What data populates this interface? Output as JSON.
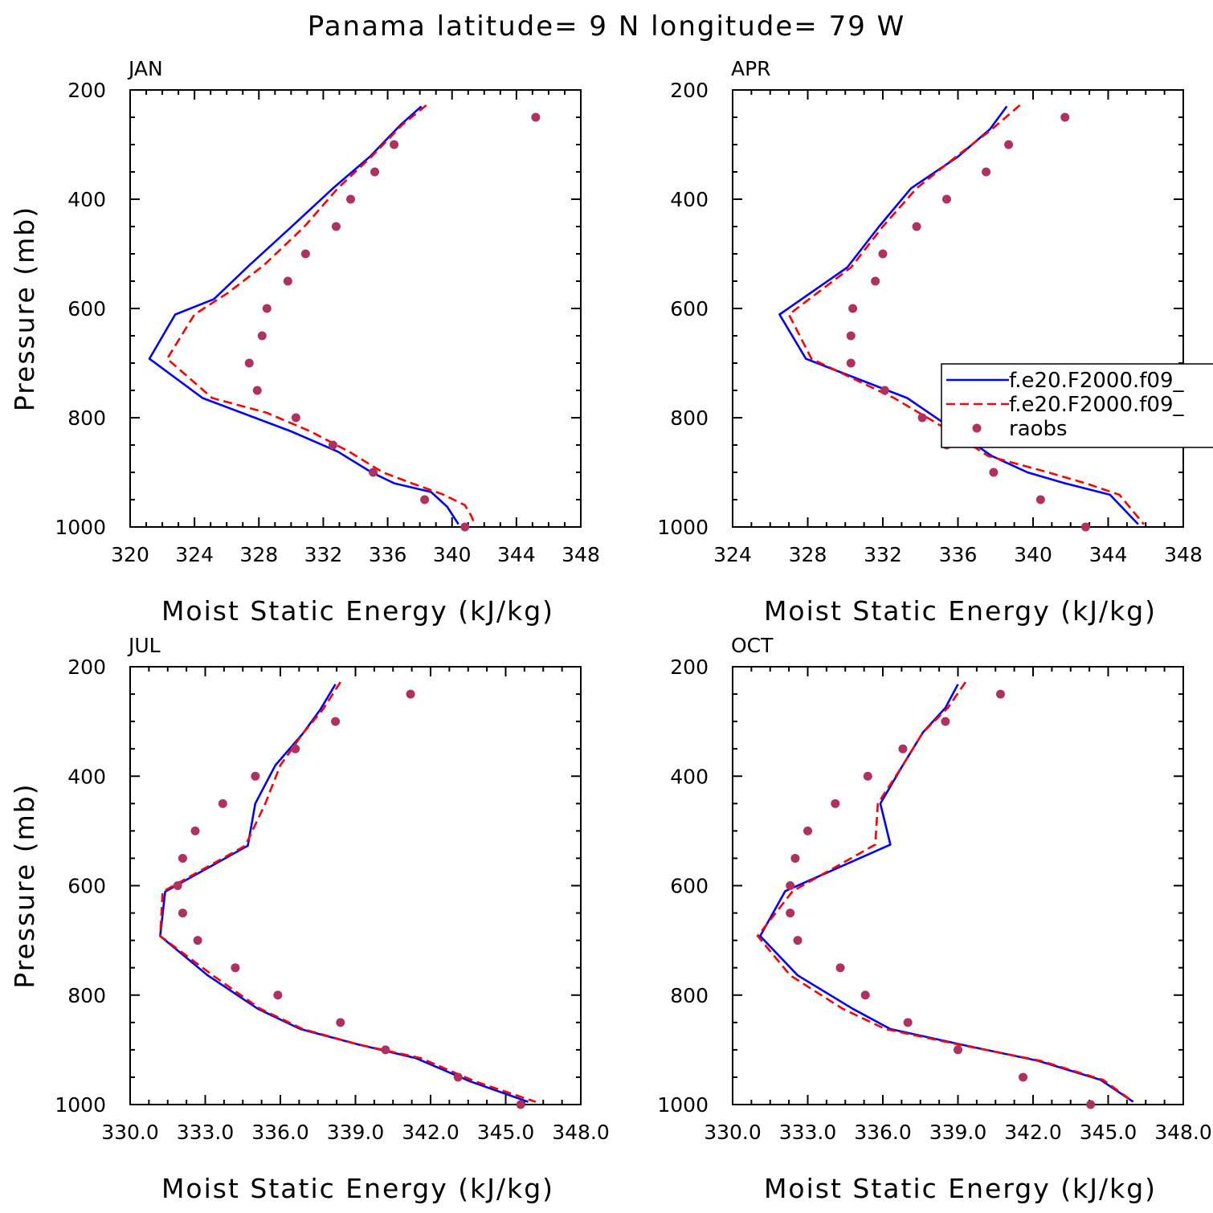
{
  "title": "Panama  latitude= 9 N longitude= 79 W",
  "colors": {
    "model1": "#0000ff",
    "model2": "#ff0000",
    "raobs": "#b03060",
    "axis": "#000000"
  },
  "legend": {
    "panel": "APR",
    "entries": [
      {
        "label": "f.e20.F2000.f09_",
        "style": "solid",
        "color": "#0000ff"
      },
      {
        "label": "f.e20.F2000.f09_",
        "style": "dashed",
        "color": "#ff0000"
      },
      {
        "label": "raobs",
        "style": "dot",
        "color": "#b03060"
      }
    ]
  },
  "chart_data": [
    {
      "type": "line",
      "panel": "JAN",
      "xlabel": "Moist Static Energy (kJ/kg)",
      "ylabel": "Pressure (mb)",
      "xlim": [
        320,
        348
      ],
      "xticks": [
        320,
        324,
        328,
        332,
        336,
        340,
        344,
        348
      ],
      "xtick_labels": [
        "320",
        "324",
        "328",
        "332",
        "336",
        "340",
        "344",
        "348"
      ],
      "ylim": [
        200,
        1000
      ],
      "yticks": [
        200,
        400,
        600,
        800,
        1000
      ],
      "ytick_labels": [
        "200",
        "400",
        "600",
        "800",
        "1000"
      ],
      "series": [
        {
          "name": "f.e20.F2000.f09_",
          "style": "solid",
          "color": "#0000ff",
          "x": [
            338.1,
            336.8,
            334.9,
            332.6,
            330.0,
            327.4,
            325.2,
            322.8,
            321.2,
            324.5,
            330.0,
            332.9,
            335.0,
            336.4,
            338.7,
            339.7,
            340.4
          ],
          "p": [
            230,
            264,
            322,
            380,
            451,
            521,
            583,
            611,
            692,
            764,
            825,
            862,
            900,
            920,
            936,
            963,
            995
          ]
        },
        {
          "name": "f.e20.F2000.f09_",
          "style": "dashed",
          "color": "#ff0000",
          "x": [
            338.4,
            336.9,
            335.0,
            332.9,
            330.8,
            328.3,
            326.1,
            324.0,
            322.3,
            325.1,
            328.5,
            331.2,
            333.6,
            335.7,
            337.6,
            339.4,
            340.8,
            341.2,
            341.4
          ],
          "p": [
            228,
            264,
            322,
            380,
            451,
            521,
            571,
            611,
            692,
            764,
            791,
            825,
            862,
            900,
            921,
            940,
            960,
            980,
            995
          ]
        },
        {
          "name": "raobs",
          "style": "dot",
          "color": "#b03060",
          "x": [
            345.2,
            336.4,
            335.2,
            333.7,
            332.8,
            330.9,
            329.8,
            328.5,
            328.2,
            327.4,
            327.9,
            330.3,
            332.6,
            335.1,
            338.3,
            340.8
          ],
          "p": [
            250,
            300,
            350,
            400,
            450,
            500,
            550,
            600,
            650,
            700,
            750,
            800,
            850,
            900,
            950,
            1000
          ]
        }
      ]
    },
    {
      "type": "line",
      "panel": "APR",
      "xlabel": "Moist Static Energy (kJ/kg)",
      "ylabel": "",
      "xlim": [
        324,
        348
      ],
      "xticks": [
        324,
        328,
        332,
        336,
        340,
        344,
        348
      ],
      "xtick_labels": [
        "324",
        "328",
        "332",
        "336",
        "340",
        "344",
        "348"
      ],
      "ylim": [
        200,
        1000
      ],
      "yticks": [
        200,
        400,
        600,
        800,
        1000
      ],
      "ytick_labels": [
        "200",
        "400",
        "600",
        "800",
        "1000"
      ],
      "series": [
        {
          "name": "f.e20.F2000.f09_",
          "style": "solid",
          "color": "#0000ff",
          "x": [
            338.6,
            337.7,
            336.0,
            333.5,
            331.8,
            330.1,
            326.5,
            327.9,
            333.3,
            335.9,
            337.8,
            339.7,
            341.7,
            344.1,
            345.6
          ],
          "p": [
            230,
            272,
            322,
            380,
            450,
            525,
            611,
            692,
            764,
            825,
            870,
            900,
            920,
            941,
            995
          ]
        },
        {
          "name": "f.e20.F2000.f09_",
          "style": "dashed",
          "color": "#ff0000",
          "x": [
            339.3,
            337.8,
            335.9,
            333.8,
            332.0,
            330.3,
            327.0,
            328.2,
            332.6,
            335.6,
            337.6,
            340.8,
            342.8,
            344.6,
            345.9
          ],
          "p": [
            228,
            272,
            322,
            380,
            450,
            525,
            611,
            692,
            764,
            825,
            870,
            900,
            920,
            941,
            995
          ]
        },
        {
          "name": "raobs",
          "style": "dot",
          "color": "#b03060",
          "x": [
            341.7,
            338.7,
            337.5,
            335.4,
            333.8,
            332.0,
            331.6,
            330.4,
            330.3,
            330.3,
            332.1,
            334.1,
            335.4,
            337.9,
            340.4,
            342.8
          ],
          "p": [
            250,
            300,
            350,
            400,
            450,
            500,
            550,
            600,
            650,
            700,
            750,
            800,
            850,
            900,
            950,
            1000
          ]
        }
      ]
    },
    {
      "type": "line",
      "panel": "JUL",
      "xlabel": "Moist Static Energy (kJ/kg)",
      "ylabel": "Pressure (mb)",
      "xlim": [
        330,
        348
      ],
      "xticks": [
        330,
        333,
        336,
        339,
        342,
        345,
        348
      ],
      "xtick_labels": [
        "330.0",
        "333.0",
        "336.0",
        "339.0",
        "342.0",
        "345.0",
        "348.0"
      ],
      "ylim": [
        200,
        1000
      ],
      "yticks": [
        200,
        400,
        600,
        800,
        1000
      ],
      "ytick_labels": [
        "200",
        "400",
        "600",
        "800",
        "1000"
      ],
      "series": [
        {
          "name": "f.e20.F2000.f09_",
          "style": "solid",
          "color": "#0000ff",
          "x": [
            338.2,
            337.6,
            336.9,
            335.8,
            335.0,
            334.7,
            331.4,
            331.2,
            333.1,
            335.1,
            336.8,
            339.1,
            341.4,
            343.6,
            345.9
          ],
          "p": [
            232,
            278,
            322,
            380,
            450,
            527,
            611,
            692,
            764,
            825,
            862,
            890,
            915,
            958,
            995
          ]
        },
        {
          "name": "f.e20.F2000.f09_",
          "style": "dashed",
          "color": "#ff0000",
          "x": [
            338.4,
            337.7,
            336.9,
            336.0,
            335.4,
            334.6,
            331.3,
            331.2,
            333.3,
            335.2,
            336.9,
            339.1,
            341.6,
            343.8,
            346.2
          ],
          "p": [
            228,
            278,
            322,
            380,
            450,
            527,
            611,
            692,
            764,
            825,
            862,
            890,
            915,
            958,
            995
          ]
        },
        {
          "name": "raobs",
          "style": "dot",
          "color": "#b03060",
          "x": [
            341.2,
            338.2,
            336.6,
            335.0,
            333.7,
            332.6,
            332.1,
            331.9,
            332.1,
            332.7,
            334.2,
            335.9,
            338.4,
            340.2,
            343.1,
            345.6
          ],
          "p": [
            250,
            300,
            350,
            400,
            450,
            500,
            550,
            600,
            650,
            700,
            750,
            800,
            850,
            900,
            950,
            1000
          ]
        }
      ]
    },
    {
      "type": "line",
      "panel": "OCT",
      "xlabel": "Moist Static Energy (kJ/kg)",
      "ylabel": "",
      "xlim": [
        330,
        348
      ],
      "xticks": [
        330,
        333,
        336,
        339,
        342,
        345,
        348
      ],
      "xtick_labels": [
        "330.0",
        "333.0",
        "336.0",
        "339.0",
        "342.0",
        "345.0",
        "348.0"
      ],
      "ylim": [
        200,
        1000
      ],
      "yticks": [
        200,
        400,
        600,
        800,
        1000
      ],
      "ytick_labels": [
        "200",
        "400",
        "600",
        "800",
        "1000"
      ],
      "series": [
        {
          "name": "f.e20.F2000.f09_",
          "style": "solid",
          "color": "#0000ff",
          "x": [
            339.0,
            338.5,
            337.6,
            336.8,
            335.9,
            336.3,
            332.1,
            331.1,
            332.6,
            334.8,
            336.3,
            339.1,
            342.2,
            344.7,
            346.0
          ],
          "p": [
            232,
            275,
            320,
            380,
            450,
            525,
            610,
            692,
            764,
            825,
            862,
            890,
            920,
            955,
            995
          ]
        },
        {
          "name": "f.e20.F2000.f09_",
          "style": "dashed",
          "color": "#ff0000",
          "x": [
            339.3,
            338.6,
            337.6,
            336.8,
            335.8,
            335.7,
            332.4,
            331.0,
            332.3,
            334.4,
            336.1,
            339.0,
            342.3,
            344.8,
            346.0
          ],
          "p": [
            228,
            275,
            320,
            380,
            450,
            525,
            610,
            692,
            764,
            825,
            862,
            890,
            920,
            955,
            995
          ]
        },
        {
          "name": "raobs",
          "style": "dot",
          "color": "#b03060",
          "x": [
            340.7,
            338.5,
            336.8,
            335.4,
            334.1,
            333.0,
            332.5,
            332.3,
            332.3,
            332.6,
            334.3,
            335.3,
            337.0,
            339.0,
            341.6,
            344.3
          ],
          "p": [
            250,
            300,
            350,
            400,
            450,
            500,
            550,
            600,
            650,
            700,
            750,
            800,
            850,
            900,
            950,
            1000
          ]
        }
      ]
    }
  ]
}
